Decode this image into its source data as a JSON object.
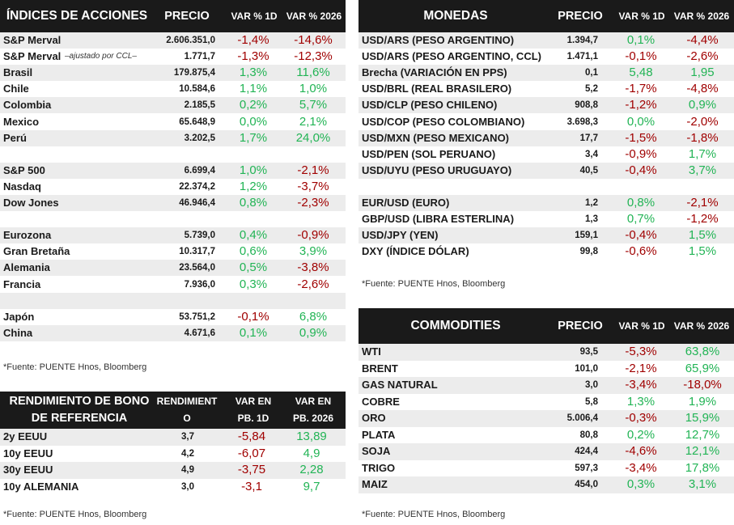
{
  "indices": {
    "header": {
      "name": "ÍNDICES DE ACCIONES",
      "price": "PRECIO",
      "d1": "VAR % 1D",
      "ytd": "VAR % 2026"
    },
    "rows": [
      {
        "name": "S&P Merval",
        "note": "",
        "price": "2.606.351,0",
        "d1": "-1,4%",
        "ytd": "-14,6%"
      },
      {
        "name": "S&P Merval",
        "note": "–ajustado por CCL–",
        "price": "1.771,7",
        "d1": "-1,3%",
        "ytd": "-12,3%"
      },
      {
        "name": "Brasil",
        "note": "",
        "price": "179.875,4",
        "d1": "1,3%",
        "ytd": "11,6%"
      },
      {
        "name": "Chile",
        "note": "",
        "price": "10.584,6",
        "d1": "1,1%",
        "ytd": "1,0%"
      },
      {
        "name": "Colombia",
        "note": "",
        "price": "2.185,5",
        "d1": "0,2%",
        "ytd": "5,7%"
      },
      {
        "name": "Mexico",
        "note": "",
        "price": "65.648,9",
        "d1": "0,0%",
        "ytd": "2,1%"
      },
      {
        "name": "Perú",
        "note": "",
        "price": "3.202,5",
        "d1": "1,7%",
        "ytd": "24,0%"
      },
      {
        "name": "",
        "note": "",
        "price": "",
        "d1": "",
        "ytd": ""
      },
      {
        "name": "S&P 500",
        "note": "",
        "price": "6.699,4",
        "d1": "1,0%",
        "ytd": "-2,1%"
      },
      {
        "name": "Nasdaq",
        "note": "",
        "price": "22.374,2",
        "d1": "1,2%",
        "ytd": "-3,7%"
      },
      {
        "name": "Dow Jones",
        "note": "",
        "price": "46.946,4",
        "d1": "0,8%",
        "ytd": "-2,3%"
      },
      {
        "name": "",
        "note": "",
        "price": "",
        "d1": "",
        "ytd": ""
      },
      {
        "name": "Eurozona",
        "note": "",
        "price": "5.739,0",
        "d1": "0,4%",
        "ytd": "-0,9%"
      },
      {
        "name": "Gran Bretaña",
        "note": "",
        "price": "10.317,7",
        "d1": "0,6%",
        "ytd": "3,9%"
      },
      {
        "name": "Alemania",
        "note": "",
        "price": "23.564,0",
        "d1": "0,5%",
        "ytd": "-3,8%"
      },
      {
        "name": "Francia",
        "note": "",
        "price": "7.936,0",
        "d1": "0,3%",
        "ytd": "-2,6%"
      },
      {
        "name": "",
        "note": "",
        "price": "",
        "d1": "",
        "ytd": ""
      },
      {
        "name": "Japón",
        "note": "",
        "price": "53.751,2",
        "d1": "-0,1%",
        "ytd": "6,8%"
      },
      {
        "name": "China",
        "note": "",
        "price": "4.671,6",
        "d1": "0,1%",
        "ytd": "0,9%"
      }
    ],
    "source": "*Fuente: PUENTE Hnos, Bloomberg"
  },
  "bonds": {
    "header": {
      "name": "RENDIMIENTO DE BONO DE REFERENCIA",
      "yield": "RENDIMIENT O",
      "d1": "VAR EN PB. 1D",
      "ytd": "VAR EN PB. 2026"
    },
    "rows": [
      {
        "name": "2y EEUU",
        "price": "3,7",
        "d1": "-5,84",
        "ytd": "13,89"
      },
      {
        "name": "10y EEUU",
        "price": "4,2",
        "d1": "-6,07",
        "ytd": "4,9"
      },
      {
        "name": "30y EEUU",
        "price": "4,9",
        "d1": "-3,75",
        "ytd": "2,28"
      },
      {
        "name": "10y ALEMANIA",
        "price": "3,0",
        "d1": "-3,1",
        "ytd": "9,7"
      }
    ],
    "source": "*Fuente: PUENTE Hnos, Bloomberg"
  },
  "currencies": {
    "header": {
      "name": "MONEDAS",
      "price": "PRECIO",
      "d1": "VAR % 1D",
      "ytd": "VAR % 2026"
    },
    "rows": [
      {
        "name": "USD/ARS (PESO ARGENTINO)",
        "price": "1.394,7",
        "d1": "0,1%",
        "ytd": "-4,4%"
      },
      {
        "name": "USD/ARS (PESO ARGENTINO, CCL)",
        "price": "1.471,1",
        "d1": "-0,1%",
        "ytd": "-2,6%"
      },
      {
        "name": "Brecha (VARIACIÓN EN PPS)",
        "price": "0,1",
        "d1": "5,48",
        "ytd": "1,95"
      },
      {
        "name": "USD/BRL (REAL BRASILERO)",
        "price": "5,2",
        "d1": "-1,7%",
        "ytd": "-4,8%"
      },
      {
        "name": "USD/CLP (PESO CHILENO)",
        "price": "908,8",
        "d1": "-1,2%",
        "ytd": "0,9%"
      },
      {
        "name": "USD/COP (PESO COLOMBIANO)",
        "price": "3.698,3",
        "d1": "0,0%",
        "ytd": "-2,0%"
      },
      {
        "name": "USD/MXN (PESO MEXICANO)",
        "price": "17,7",
        "d1": "-1,5%",
        "ytd": "-1,8%"
      },
      {
        "name": "USD/PEN (SOL PERUANO)",
        "price": "3,4",
        "d1": "-0,9%",
        "ytd": "1,7%"
      },
      {
        "name": "USD/UYU (PESO URUGUAYO)",
        "price": "40,5",
        "d1": "-0,4%",
        "ytd": "3,7%"
      },
      {
        "name": "",
        "price": "",
        "d1": "",
        "ytd": ""
      },
      {
        "name": "EUR/USD (EURO)",
        "price": "1,2",
        "d1": "0,8%",
        "ytd": "-2,1%"
      },
      {
        "name": "GBP/USD (LIBRA ESTERLINA)",
        "price": "1,3",
        "d1": "0,7%",
        "ytd": "-1,2%"
      },
      {
        "name": "USD/JPY (YEN)",
        "price": "159,1",
        "d1": "-0,4%",
        "ytd": "1,5%"
      },
      {
        "name": "DXY (ÍNDICE DÓLAR)",
        "price": "99,8",
        "d1": "-0,6%",
        "ytd": "1,5%"
      }
    ],
    "source": "*Fuente: PUENTE Hnos, Bloomberg"
  },
  "commodities": {
    "header": {
      "name": "COMMODITIES",
      "price": "PRECIO",
      "d1": "VAR % 1D",
      "ytd": "VAR % 2026"
    },
    "rows": [
      {
        "name": "WTI",
        "price": "93,5",
        "d1": "-5,3%",
        "ytd": "63,8%"
      },
      {
        "name": "BRENT",
        "price": "101,0",
        "d1": "-2,1%",
        "ytd": "65,9%"
      },
      {
        "name": "GAS NATURAL",
        "price": "3,0",
        "d1": "-3,4%",
        "ytd": "-18,0%"
      },
      {
        "name": "COBRE",
        "price": "5,8",
        "d1": "1,3%",
        "ytd": "1,9%"
      },
      {
        "name": "ORO",
        "price": "5.006,4",
        "d1": "-0,3%",
        "ytd": "15,9%"
      },
      {
        "name": "PLATA",
        "price": "80,8",
        "d1": "0,2%",
        "ytd": "12,7%"
      },
      {
        "name": "SOJA",
        "price": "424,4",
        "d1": "-4,6%",
        "ytd": "12,1%"
      },
      {
        "name": "TRIGO",
        "price": "597,3",
        "d1": "-3,4%",
        "ytd": "17,8%"
      },
      {
        "name": "MAIZ",
        "price": "454,0",
        "d1": "0,3%",
        "ytd": "3,1%"
      }
    ],
    "source": "*Fuente: PUENTE Hnos, Bloomberg"
  },
  "colors": {
    "positive": "#22b455",
    "negative": "#a00000",
    "header_bg": "#1a1a1a",
    "stripe": "#ececec"
  }
}
